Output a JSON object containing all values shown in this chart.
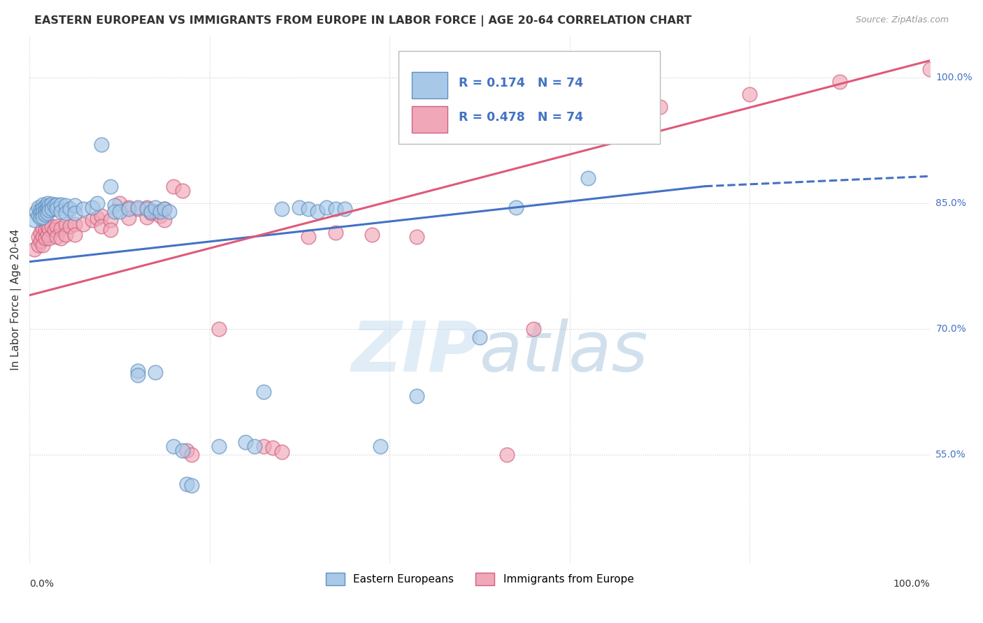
{
  "title": "EASTERN EUROPEAN VS IMMIGRANTS FROM EUROPE IN LABOR FORCE | AGE 20-64 CORRELATION CHART",
  "source": "Source: ZipAtlas.com",
  "ylabel": "In Labor Force | Age 20-64",
  "ylabel_ticks": [
    55.0,
    70.0,
    85.0,
    100.0
  ],
  "xlim": [
    0.0,
    1.0
  ],
  "ylim": [
    0.42,
    1.05
  ],
  "blue_R": 0.174,
  "pink_R": 0.478,
  "N": 74,
  "blue_scatter": [
    [
      0.005,
      0.83
    ],
    [
      0.008,
      0.84
    ],
    [
      0.01,
      0.845
    ],
    [
      0.01,
      0.835
    ],
    [
      0.012,
      0.842
    ],
    [
      0.012,
      0.838
    ],
    [
      0.012,
      0.832
    ],
    [
      0.015,
      0.848
    ],
    [
      0.015,
      0.843
    ],
    [
      0.015,
      0.838
    ],
    [
      0.015,
      0.833
    ],
    [
      0.018,
      0.846
    ],
    [
      0.018,
      0.841
    ],
    [
      0.018,
      0.836
    ],
    [
      0.02,
      0.85
    ],
    [
      0.02,
      0.844
    ],
    [
      0.02,
      0.838
    ],
    [
      0.022,
      0.847
    ],
    [
      0.022,
      0.841
    ],
    [
      0.025,
      0.849
    ],
    [
      0.025,
      0.843
    ],
    [
      0.028,
      0.847
    ],
    [
      0.03,
      0.848
    ],
    [
      0.03,
      0.843
    ],
    [
      0.035,
      0.848
    ],
    [
      0.035,
      0.84
    ],
    [
      0.04,
      0.847
    ],
    [
      0.04,
      0.838
    ],
    [
      0.045,
      0.843
    ],
    [
      0.05,
      0.847
    ],
    [
      0.05,
      0.838
    ],
    [
      0.06,
      0.843
    ],
    [
      0.07,
      0.845
    ],
    [
      0.075,
      0.85
    ],
    [
      0.08,
      0.92
    ],
    [
      0.09,
      0.87
    ],
    [
      0.095,
      0.847
    ],
    [
      0.095,
      0.84
    ],
    [
      0.1,
      0.84
    ],
    [
      0.11,
      0.843
    ],
    [
      0.12,
      0.845
    ],
    [
      0.13,
      0.843
    ],
    [
      0.135,
      0.84
    ],
    [
      0.14,
      0.845
    ],
    [
      0.145,
      0.84
    ],
    [
      0.15,
      0.843
    ],
    [
      0.155,
      0.84
    ],
    [
      0.12,
      0.65
    ],
    [
      0.12,
      0.645
    ],
    [
      0.14,
      0.648
    ],
    [
      0.16,
      0.56
    ],
    [
      0.17,
      0.555
    ],
    [
      0.175,
      0.515
    ],
    [
      0.18,
      0.513
    ],
    [
      0.21,
      0.56
    ],
    [
      0.24,
      0.565
    ],
    [
      0.25,
      0.56
    ],
    [
      0.26,
      0.625
    ],
    [
      0.28,
      0.843
    ],
    [
      0.3,
      0.845
    ],
    [
      0.31,
      0.843
    ],
    [
      0.32,
      0.84
    ],
    [
      0.33,
      0.845
    ],
    [
      0.34,
      0.843
    ],
    [
      0.35,
      0.843
    ],
    [
      0.39,
      0.56
    ],
    [
      0.43,
      0.62
    ],
    [
      0.5,
      0.69
    ],
    [
      0.54,
      0.845
    ],
    [
      0.62,
      0.88
    ]
  ],
  "pink_scatter": [
    [
      0.005,
      0.795
    ],
    [
      0.01,
      0.81
    ],
    [
      0.01,
      0.8
    ],
    [
      0.012,
      0.815
    ],
    [
      0.012,
      0.805
    ],
    [
      0.015,
      0.82
    ],
    [
      0.015,
      0.81
    ],
    [
      0.015,
      0.8
    ],
    [
      0.018,
      0.818
    ],
    [
      0.018,
      0.808
    ],
    [
      0.02,
      0.822
    ],
    [
      0.02,
      0.812
    ],
    [
      0.022,
      0.82
    ],
    [
      0.022,
      0.808
    ],
    [
      0.025,
      0.822
    ],
    [
      0.028,
      0.818
    ],
    [
      0.03,
      0.822
    ],
    [
      0.03,
      0.81
    ],
    [
      0.035,
      0.82
    ],
    [
      0.035,
      0.808
    ],
    [
      0.04,
      0.825
    ],
    [
      0.04,
      0.812
    ],
    [
      0.045,
      0.822
    ],
    [
      0.05,
      0.825
    ],
    [
      0.05,
      0.812
    ],
    [
      0.06,
      0.825
    ],
    [
      0.07,
      0.83
    ],
    [
      0.075,
      0.832
    ],
    [
      0.08,
      0.835
    ],
    [
      0.08,
      0.822
    ],
    [
      0.09,
      0.83
    ],
    [
      0.09,
      0.818
    ],
    [
      0.1,
      0.85
    ],
    [
      0.11,
      0.845
    ],
    [
      0.11,
      0.832
    ],
    [
      0.12,
      0.843
    ],
    [
      0.13,
      0.845
    ],
    [
      0.13,
      0.833
    ],
    [
      0.135,
      0.838
    ],
    [
      0.14,
      0.84
    ],
    [
      0.145,
      0.835
    ],
    [
      0.15,
      0.843
    ],
    [
      0.15,
      0.83
    ],
    [
      0.16,
      0.87
    ],
    [
      0.17,
      0.865
    ],
    [
      0.175,
      0.555
    ],
    [
      0.18,
      0.55
    ],
    [
      0.21,
      0.7
    ],
    [
      0.26,
      0.56
    ],
    [
      0.27,
      0.558
    ],
    [
      0.28,
      0.553
    ],
    [
      0.31,
      0.81
    ],
    [
      0.34,
      0.815
    ],
    [
      0.38,
      0.812
    ],
    [
      0.43,
      0.81
    ],
    [
      0.53,
      0.55
    ],
    [
      0.56,
      0.7
    ],
    [
      0.65,
      0.93
    ],
    [
      0.7,
      0.965
    ],
    [
      0.8,
      0.98
    ],
    [
      0.9,
      0.995
    ],
    [
      1.0,
      1.01
    ]
  ],
  "blue_line": {
    "x0": 0.0,
    "y0": 0.78,
    "x1": 0.75,
    "y1": 0.87
  },
  "blue_dashed_line": {
    "x0": 0.75,
    "y0": 0.87,
    "x1": 1.0,
    "y1": 0.882
  },
  "pink_line": {
    "x0": 0.0,
    "y0": 0.74,
    "x1": 1.0,
    "y1": 1.02
  },
  "blue_color": "#a8c8e8",
  "blue_edge": "#6090c0",
  "pink_color": "#f0a8b8",
  "pink_edge": "#d06080",
  "blue_line_color": "#4472c4",
  "pink_line_color": "#e05878",
  "watermark_zip": "ZIP",
  "watermark_atlas": "atlas",
  "background_color": "#ffffff",
  "grid_color": "#cccccc"
}
